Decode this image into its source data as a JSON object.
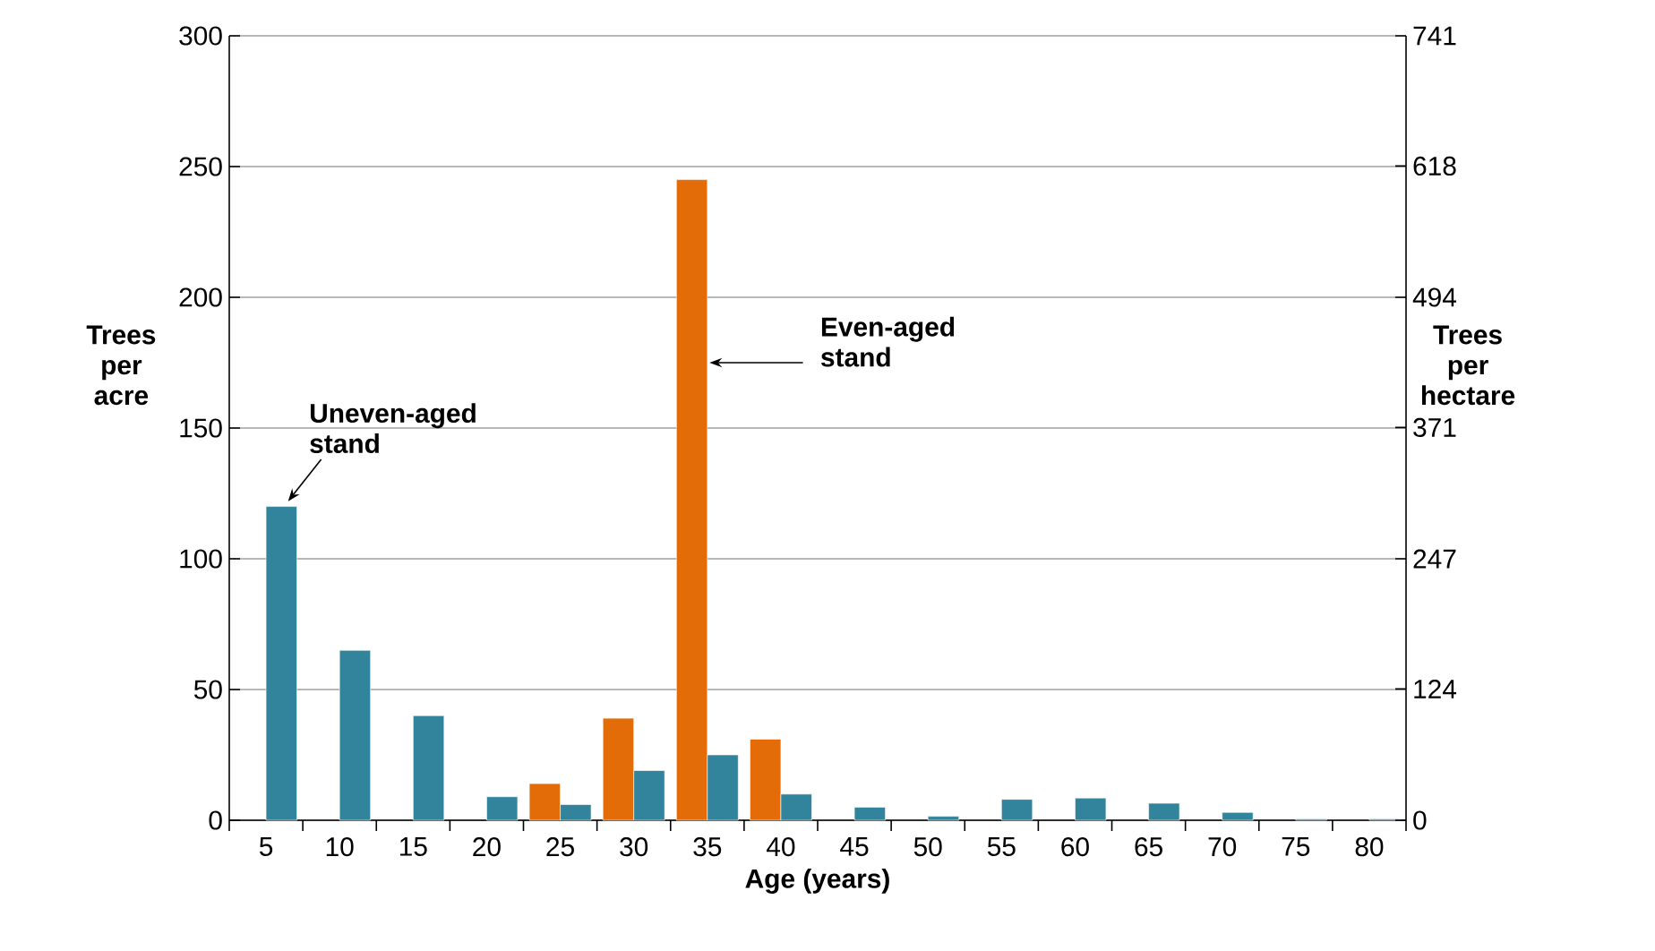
{
  "chart_data": {
    "type": "bar",
    "xlabel": "Age (years)",
    "ylabel": "Trees per acre",
    "y2label": "Trees per hectare",
    "categories": [
      "5",
      "10",
      "15",
      "20",
      "25",
      "30",
      "35",
      "40",
      "45",
      "50",
      "55",
      "60",
      "65",
      "70",
      "75",
      "80"
    ],
    "series": [
      {
        "color": "#e36c09",
        "values": [
          null,
          null,
          null,
          null,
          14,
          39,
          245,
          31,
          null,
          null,
          null,
          null,
          null,
          null,
          null,
          null
        ]
      },
      {
        "color": "#31849b",
        "values": [
          120,
          65,
          40,
          9,
          6,
          19,
          25,
          10,
          5,
          1.5,
          8,
          8.5,
          6.5,
          3,
          0.5,
          0.5
        ]
      }
    ],
    "ylim": [
      0,
      300
    ],
    "yticks": [
      0,
      50,
      100,
      150,
      200,
      250,
      300
    ],
    "y2lim": [
      0,
      741
    ],
    "y2ticks": [
      0,
      124,
      247,
      371,
      494,
      618,
      741
    ],
    "grid": "y",
    "annotations": [
      {
        "text": "Uneven-aged stand",
        "x": "5",
        "y": 120
      },
      {
        "text": "Even-aged stand",
        "x": "35",
        "y": 175
      }
    ]
  }
}
